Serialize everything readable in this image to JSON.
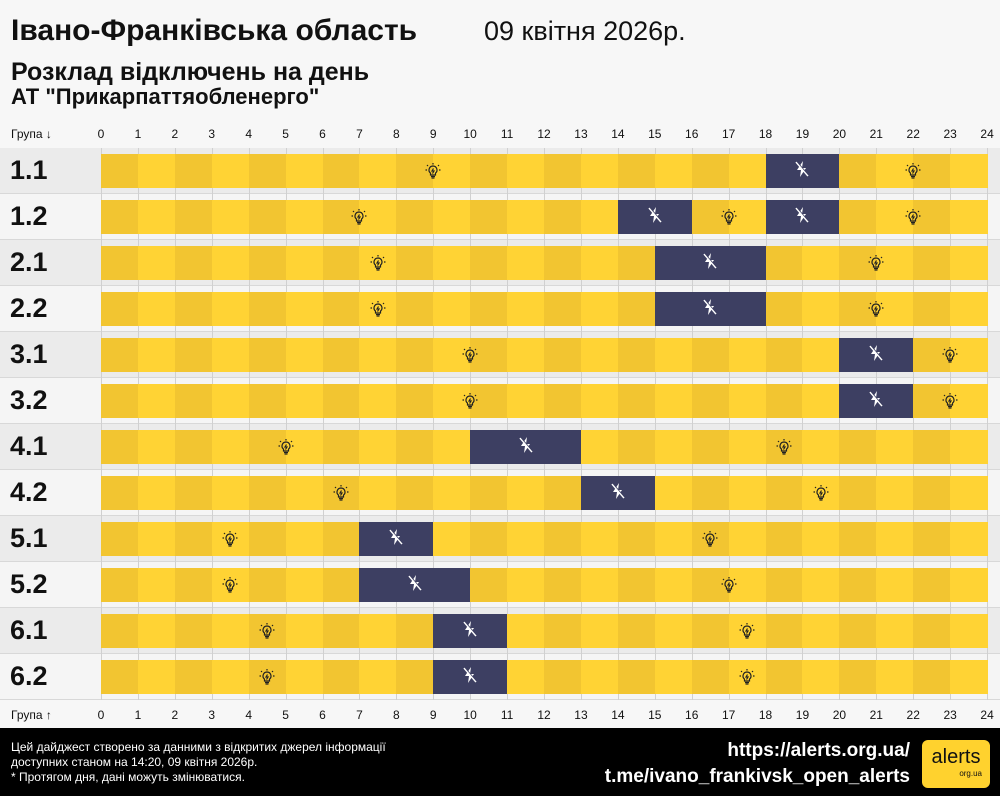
{
  "header": {
    "title": "Івано-Франківська область",
    "date": "09 квітня 2026р.",
    "subtitle": "Розклад відключень на день",
    "company": "АТ \"Прикарпаттяобленерго\""
  },
  "axis": {
    "top_label": "Група ↓",
    "bottom_label": "Група ↑",
    "hours": [
      "0",
      "1",
      "2",
      "3",
      "4",
      "5",
      "6",
      "7",
      "8",
      "9",
      "10",
      "11",
      "12",
      "13",
      "14",
      "15",
      "16",
      "17",
      "18",
      "19",
      "20",
      "21",
      "22",
      "23",
      "24"
    ]
  },
  "colors": {
    "on_dark": "#f2c531",
    "on_light": "#ffd334",
    "off": "#3d3f62"
  },
  "icons": {
    "on": "lightbulb-icon",
    "off": "no-power-icon"
  },
  "groups": [
    {
      "name": "1.1",
      "off": [
        [
          18,
          20
        ]
      ]
    },
    {
      "name": "1.2",
      "off": [
        [
          14,
          16
        ],
        [
          18,
          20
        ]
      ]
    },
    {
      "name": "2.1",
      "off": [
        [
          15,
          18
        ]
      ]
    },
    {
      "name": "2.2",
      "off": [
        [
          15,
          18
        ]
      ]
    },
    {
      "name": "3.1",
      "off": [
        [
          20,
          22
        ]
      ]
    },
    {
      "name": "3.2",
      "off": [
        [
          20,
          22
        ]
      ]
    },
    {
      "name": "4.1",
      "off": [
        [
          10,
          13
        ]
      ]
    },
    {
      "name": "4.2",
      "off": [
        [
          13,
          15
        ]
      ]
    },
    {
      "name": "5.1",
      "off": [
        [
          7,
          9
        ]
      ]
    },
    {
      "name": "5.2",
      "off": [
        [
          7,
          10
        ]
      ]
    },
    {
      "name": "6.1",
      "off": [
        [
          9,
          11
        ]
      ]
    },
    {
      "name": "6.2",
      "off": [
        [
          9,
          11
        ]
      ]
    }
  ],
  "footer": {
    "note_1": "Цей дайджест створено за данними з відкритих джерел інформації",
    "note_2": "доступних станом на 14:20, 09 квітня 2026р.",
    "note_3": "* Протягом дня, дані можуть змінюватися.",
    "link_1": "https://alerts.org.ua/",
    "link_2": "t.me/ivano_frankivsk_open_alerts",
    "logo": "alerts",
    "logo_sub": "org.ua"
  }
}
